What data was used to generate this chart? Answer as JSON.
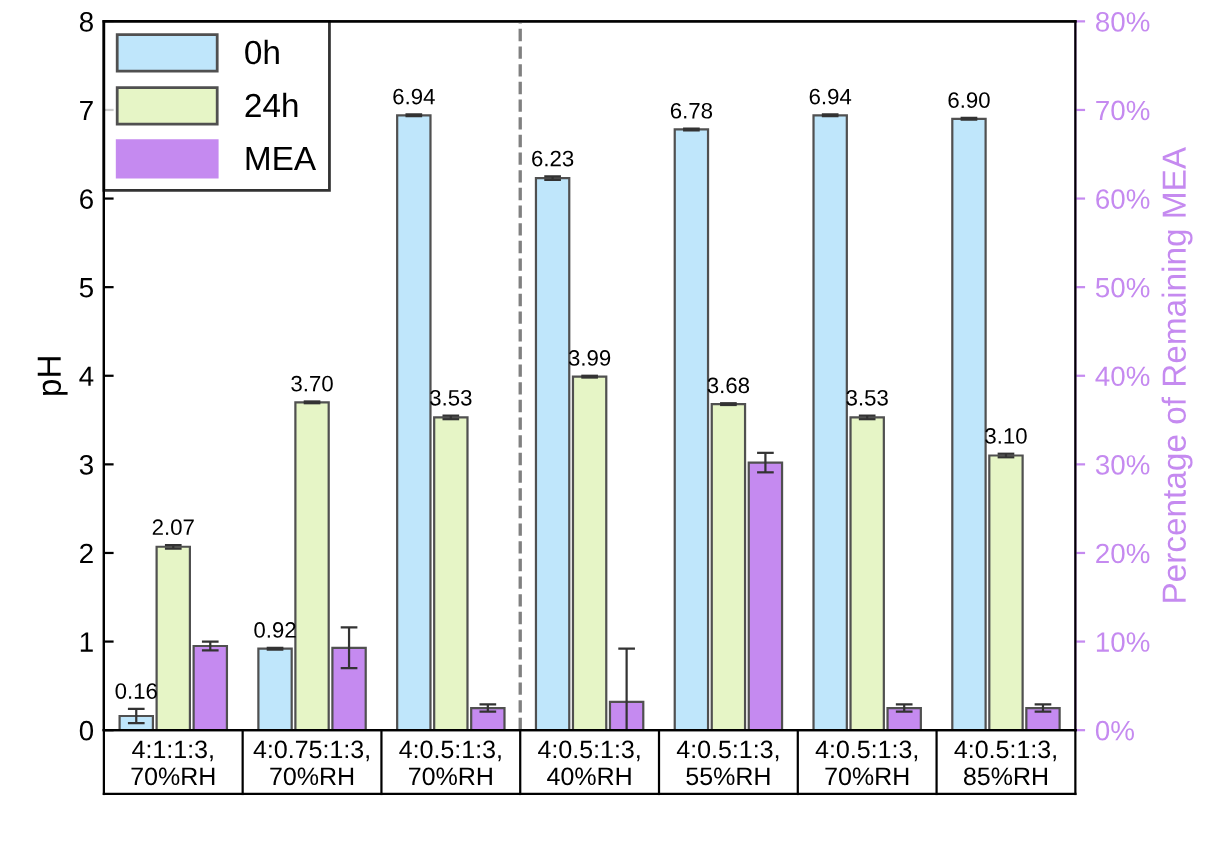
{
  "chart_data": {
    "type": "bar",
    "ylabel": "pH",
    "y2label": "Percentage of Remaining MEA",
    "categories": [
      "4:1:1:3,\n70%RH",
      "4:0.75:1:3,\n70%RH",
      "4:0.5:1:3,\n70%RH",
      "4:0.5:1:3,\n40%RH",
      "4:0.5:1:3,\n55%RH",
      "4:0.5:1:3,\n70%RH",
      "4:0.5:1:3,\n85%RH"
    ],
    "series": [
      {
        "name": "0h",
        "color": "#bfe6fb",
        "values": [
          0.16,
          0.92,
          6.94,
          6.23,
          6.78,
          6.94,
          6.9
        ],
        "errors": [
          0.08,
          0.01,
          0.01,
          0.02,
          0.01,
          0.01,
          0.01
        ],
        "value_labels": [
          "0.16",
          "0.92",
          "6.94",
          "6.23",
          "6.78",
          "6.94",
          "6.90"
        ]
      },
      {
        "name": "24h",
        "color": "#e6f5c6",
        "values": [
          2.07,
          3.7,
          3.53,
          3.99,
          3.68,
          3.53,
          3.1
        ],
        "errors": [
          0.02,
          0.01,
          0.02,
          0.01,
          0.01,
          0.02,
          0.02
        ],
        "value_labels": [
          "2.07",
          "3.70",
          "3.53",
          "3.99",
          "3.68",
          "3.53",
          "3.10"
        ]
      },
      {
        "name": "MEA",
        "color": "#c58af0",
        "axis": "y2",
        "values": [
          9.5,
          9.3,
          2.5,
          3.2,
          30.2,
          2.5,
          2.5
        ],
        "errors": [
          0.5,
          2.3,
          0.4,
          [
            0,
            9.2
          ],
          1.1,
          0.4,
          0.4
        ]
      }
    ],
    "ylim": [
      0,
      8
    ],
    "yticks": [
      0,
      1,
      2,
      3,
      4,
      5,
      6,
      7,
      8
    ],
    "y2lim": [
      0,
      80
    ],
    "y2ticks": [
      {
        "value": 0,
        "label": "0%"
      },
      {
        "value": 10,
        "label": "10%"
      },
      {
        "value": 20,
        "label": "20%"
      },
      {
        "value": 30,
        "label": "30%"
      },
      {
        "value": 40,
        "label": "40%"
      },
      {
        "value": 50,
        "label": "50%"
      },
      {
        "value": 60,
        "label": "60%"
      },
      {
        "value": 70,
        "label": "70%"
      },
      {
        "value": 80,
        "label": "80%"
      }
    ],
    "legend": "top left",
    "grid": false
  }
}
